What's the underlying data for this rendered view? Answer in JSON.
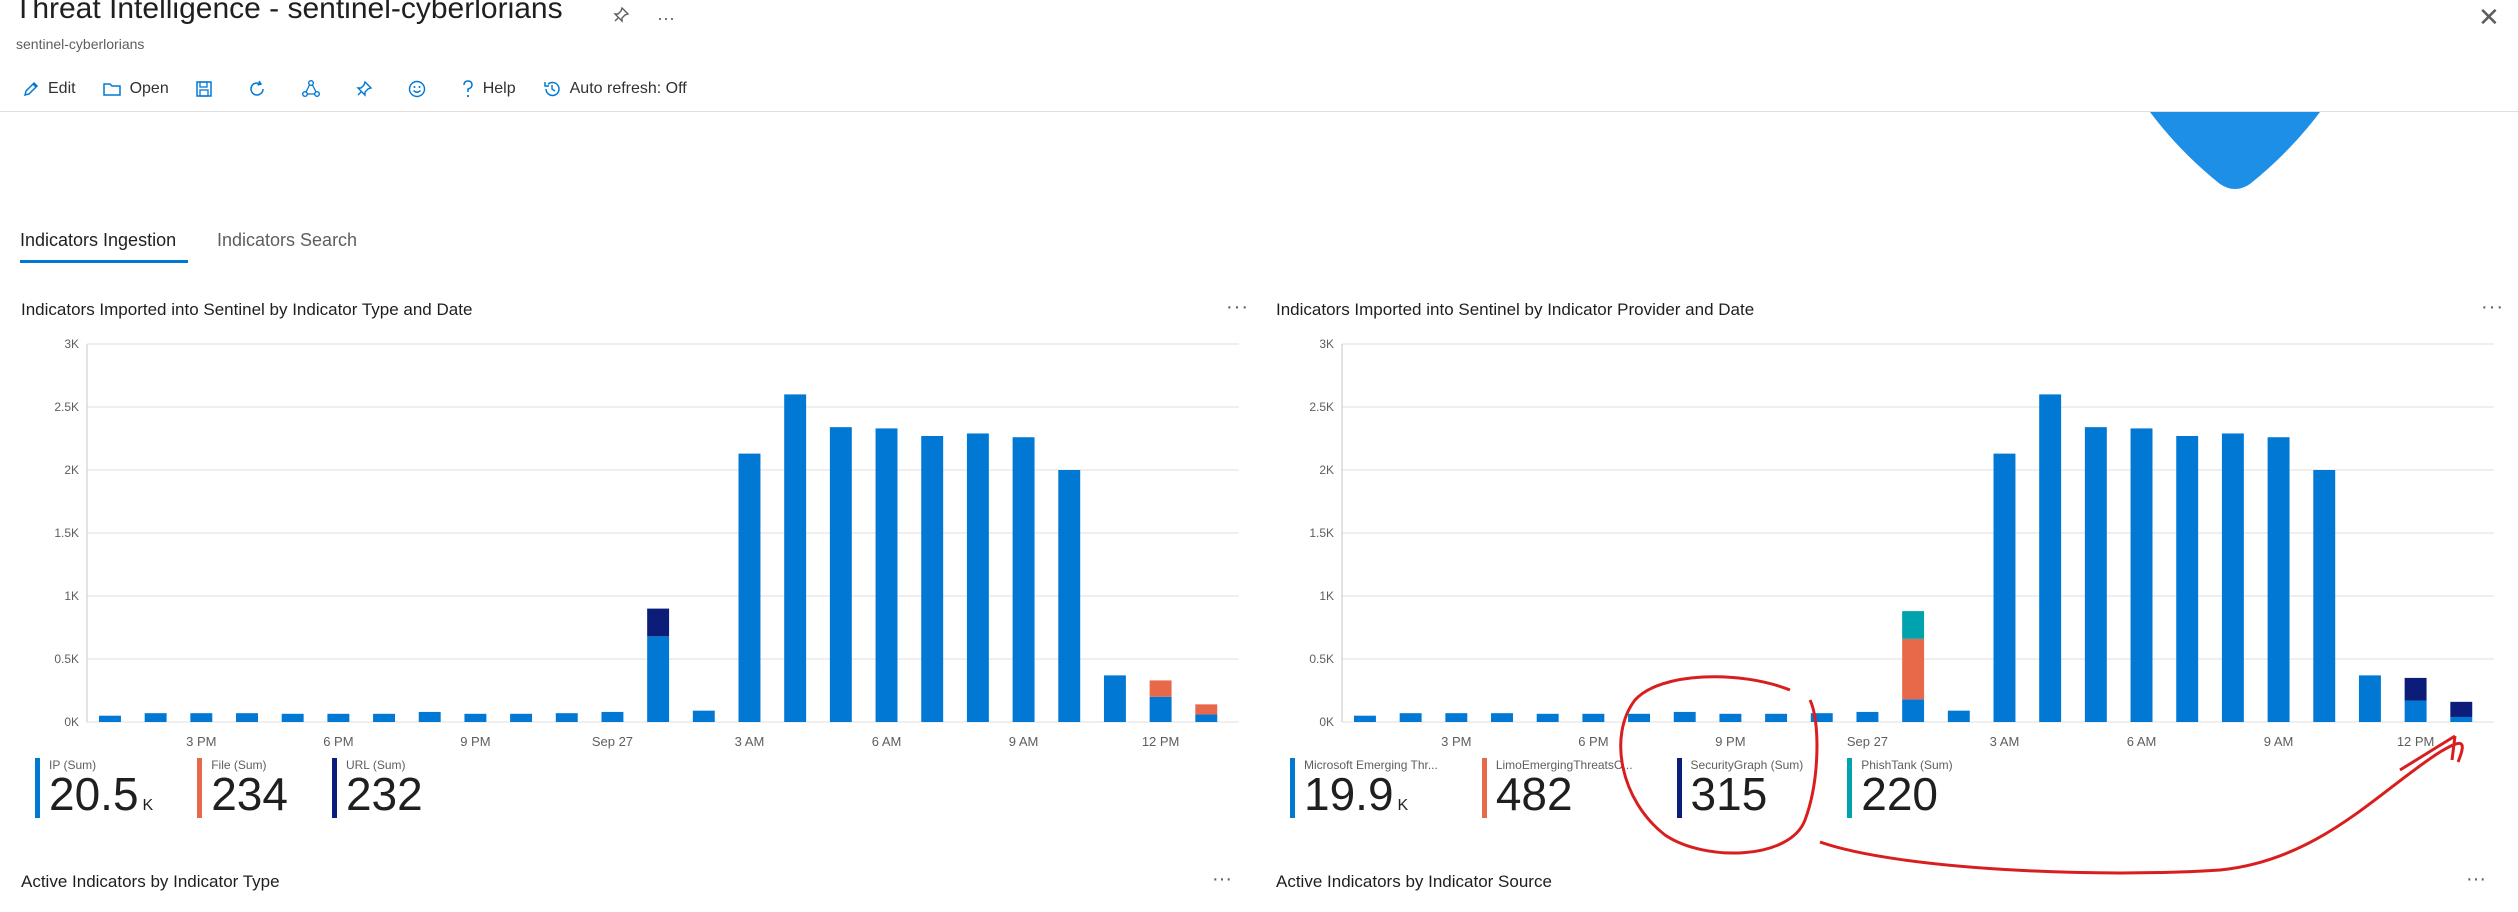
{
  "header": {
    "title": "Threat Intelligence - sentinel-cyberlorians",
    "subtitle": "sentinel-cyberlorians",
    "pin_icon": "pin-icon",
    "more": "···",
    "close": "✕"
  },
  "toolbar": {
    "edit": "Edit",
    "open": "Open",
    "help": "Help",
    "auto_refresh": "Auto refresh: Off"
  },
  "tabs": [
    {
      "label": "Indicators Ingestion",
      "active": true
    },
    {
      "label": "Indicators Search",
      "active": false
    }
  ],
  "panels": [
    {
      "title": "Indicators Imported into Sentinel by Indicator Type and Date",
      "more": "···",
      "legend": [
        {
          "label": "IP (Sum)",
          "value": "20.5",
          "suffix": "K",
          "color": "#0078d4"
        },
        {
          "label": "File (Sum)",
          "value": "234",
          "suffix": "",
          "color": "#e8684a"
        },
        {
          "label": "URL (Sum)",
          "value": "232",
          "suffix": "",
          "color": "#0b1d78"
        }
      ]
    },
    {
      "title": "Indicators Imported into Sentinel by Indicator Provider and Date",
      "more": "···",
      "legend": [
        {
          "label": "Microsoft Emerging Thr...",
          "value": "19.9",
          "suffix": "K",
          "color": "#0078d4"
        },
        {
          "label": "LimoEmergingThreatsC...",
          "value": "482",
          "suffix": "",
          "color": "#e8684a"
        },
        {
          "label": "SecurityGraph (Sum)",
          "value": "315",
          "suffix": "",
          "color": "#0b1d78"
        },
        {
          "label": "PhishTank (Sum)",
          "value": "220",
          "suffix": "",
          "color": "#00a2ad"
        }
      ]
    }
  ],
  "sections": {
    "left": "Active Indicators by Indicator Type",
    "right": "Active Indicators by Indicator Source",
    "more": "···"
  },
  "chart_data": [
    {
      "type": "bar",
      "stacked": true,
      "title": "Indicators Imported into Sentinel by Indicator Type and Date",
      "ylim": [
        0,
        3000
      ],
      "y_ticks": [
        "0K",
        "0.5K",
        "1K",
        "1.5K",
        "2K",
        "2.5K",
        "3K"
      ],
      "x_tick_labels": [
        {
          "index": 2,
          "label": "3 PM"
        },
        {
          "index": 5,
          "label": "6 PM"
        },
        {
          "index": 8,
          "label": "9 PM"
        },
        {
          "index": 11,
          "label": "Sep 27"
        },
        {
          "index": 14,
          "label": "3 AM"
        },
        {
          "index": 17,
          "label": "6 AM"
        },
        {
          "index": 20,
          "label": "9 AM"
        },
        {
          "index": 23,
          "label": "12 PM"
        }
      ],
      "series": [
        {
          "name": "IP",
          "color": "#0078d4",
          "values": [
            50,
            70,
            70,
            70,
            65,
            65,
            65,
            80,
            65,
            65,
            70,
            80,
            680,
            90,
            2130,
            2600,
            2340,
            2330,
            2270,
            2290,
            2260,
            2000,
            370,
            200,
            60
          ]
        },
        {
          "name": "File",
          "color": "#e8684a",
          "values": [
            0,
            0,
            0,
            0,
            0,
            0,
            0,
            0,
            0,
            0,
            0,
            0,
            0,
            0,
            0,
            0,
            0,
            0,
            0,
            0,
            0,
            0,
            0,
            130,
            80
          ]
        },
        {
          "name": "URL",
          "color": "#0b1d78",
          "values": [
            0,
            0,
            0,
            0,
            0,
            0,
            0,
            0,
            0,
            0,
            0,
            0,
            220,
            0,
            0,
            0,
            0,
            0,
            0,
            0,
            0,
            0,
            0,
            0,
            0
          ]
        }
      ]
    },
    {
      "type": "bar",
      "stacked": true,
      "title": "Indicators Imported into Sentinel by Indicator Provider and Date",
      "ylim": [
        0,
        3000
      ],
      "y_ticks": [
        "0K",
        "0.5K",
        "1K",
        "1.5K",
        "2K",
        "2.5K",
        "3K"
      ],
      "x_tick_labels": [
        {
          "index": 2,
          "label": "3 PM"
        },
        {
          "index": 5,
          "label": "6 PM"
        },
        {
          "index": 8,
          "label": "9 PM"
        },
        {
          "index": 11,
          "label": "Sep 27"
        },
        {
          "index": 14,
          "label": "3 AM"
        },
        {
          "index": 17,
          "label": "6 AM"
        },
        {
          "index": 20,
          "label": "9 AM"
        },
        {
          "index": 23,
          "label": "12 PM"
        }
      ],
      "series": [
        {
          "name": "Microsoft Emerging Threats",
          "color": "#0078d4",
          "values": [
            50,
            70,
            70,
            70,
            65,
            65,
            65,
            80,
            65,
            65,
            70,
            80,
            180,
            90,
            2130,
            2600,
            2340,
            2330,
            2270,
            2290,
            2260,
            2000,
            370,
            170,
            40
          ]
        },
        {
          "name": "LimoEmergingThreats",
          "color": "#e8684a",
          "values": [
            0,
            0,
            0,
            0,
            0,
            0,
            0,
            0,
            0,
            0,
            0,
            0,
            480,
            0,
            0,
            0,
            0,
            0,
            0,
            0,
            0,
            0,
            0,
            0,
            0
          ]
        },
        {
          "name": "SecurityGraph",
          "color": "#0b1d78",
          "values": [
            0,
            0,
            0,
            0,
            0,
            0,
            0,
            0,
            0,
            0,
            0,
            0,
            0,
            0,
            0,
            0,
            0,
            0,
            0,
            0,
            0,
            0,
            0,
            180,
            120
          ]
        },
        {
          "name": "PhishTank",
          "color": "#00a2ad",
          "values": [
            0,
            0,
            0,
            0,
            0,
            0,
            0,
            0,
            0,
            0,
            0,
            0,
            220,
            0,
            0,
            0,
            0,
            0,
            0,
            0,
            0,
            0,
            0,
            0,
            0
          ]
        }
      ]
    }
  ]
}
